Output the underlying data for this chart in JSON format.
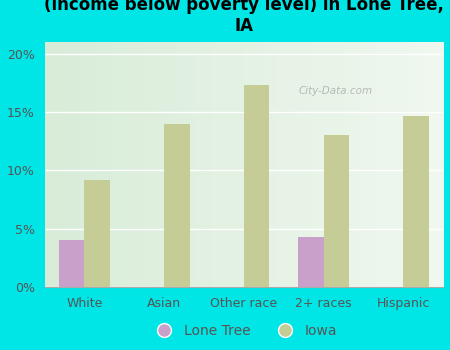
{
  "title": "Breakdown of poor residents within races\n(income below poverty level) in Lone Tree,\nIA",
  "categories": [
    "White",
    "Asian",
    "Other race",
    "2+ races",
    "Hispanic"
  ],
  "lone_tree_values": [
    4.0,
    0,
    0,
    4.3,
    0
  ],
  "iowa_values": [
    9.2,
    14.0,
    17.3,
    13.0,
    14.7
  ],
  "lone_tree_color": "#c9a0c9",
  "iowa_color": "#c5cc96",
  "background_color": "#00e5e5",
  "plot_bg_left": "#d8ecd8",
  "plot_bg_right": "#f0f8f0",
  "ylim": [
    0,
    21
  ],
  "yticks": [
    0,
    5,
    10,
    15,
    20
  ],
  "legend_labels": [
    "Lone Tree",
    "Iowa"
  ],
  "bar_width": 0.32,
  "title_fontsize": 12,
  "axis_fontsize": 9,
  "tick_color": "#555555",
  "watermark": "City-Data.com"
}
